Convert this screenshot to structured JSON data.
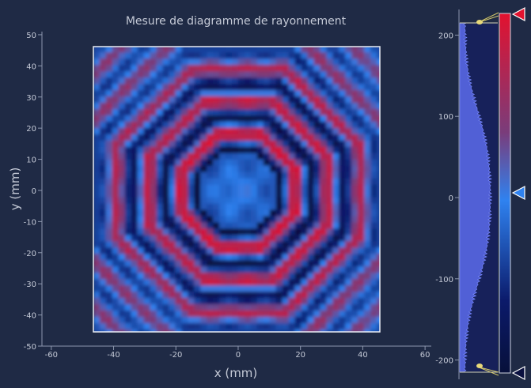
{
  "chart_data": {
    "type": "heatmap",
    "title": "Mesure de diagramme de rayonnement",
    "xlabel": "x (mm)",
    "ylabel": "y (mm)",
    "xlim": [
      -63,
      62
    ],
    "ylim": [
      -50,
      51
    ],
    "data_extent": {
      "x": [
        -46.5,
        46.5
      ],
      "y": [
        -46.5,
        46.5
      ]
    },
    "x_ticks": [
      -60,
      -40,
      -20,
      0,
      20,
      40,
      60
    ],
    "y_ticks": [
      50,
      40,
      30,
      20,
      10,
      0,
      -10,
      -20,
      -30,
      -40,
      -50
    ],
    "pattern": "concentric octagonal interference rings, low values at centre",
    "colorbar": {
      "range": [
        -215,
        215
      ],
      "ticks": [
        200,
        100,
        0,
        -100,
        -200
      ],
      "upper_marker": 215,
      "lower_marker": -215,
      "center_marker": 0,
      "colors": [
        "#e2122f",
        "#7a3c7a",
        "#2f82f0",
        "#07103a"
      ],
      "histogram": "distribution of values, peaked near 0"
    },
    "colors": {
      "background": "#1f2a45",
      "axis": "#8d97ae",
      "text": "#c4c9d6",
      "plot_border": "#e8ecf4"
    }
  }
}
